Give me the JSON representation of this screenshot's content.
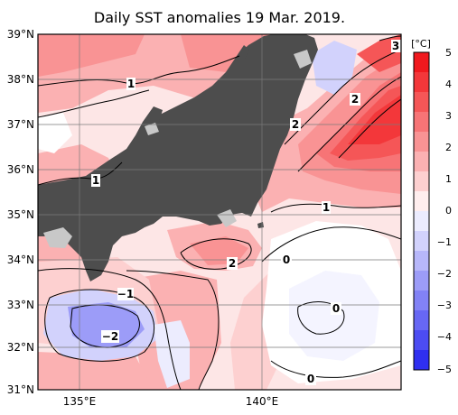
{
  "title": "Daily SST anomalies 19 Mar. 2019.",
  "lat_labels": [
    "39°N",
    "38°N",
    "37°N",
    "36°N",
    "35°N",
    "34°N",
    "33°N",
    "32°N",
    "31°N"
  ],
  "lon_labels": [
    "135°E",
    "140°E"
  ],
  "colorbar": {
    "unit": "[°C]",
    "ticks": [
      "5",
      "4",
      "3",
      "2",
      "1",
      "0",
      "−1",
      "−2",
      "−3",
      "−4",
      "−5"
    ],
    "colors": [
      "#f0191e",
      "#f3373a",
      "#f55657",
      "#f77476",
      "#f99394",
      "#fbb1b2",
      "#fdd0d0",
      "#ffeeee",
      "#ececfe",
      "#d2d2fc",
      "#b7b7fa",
      "#9c9cf8",
      "#8282f6",
      "#6767f4",
      "#4c4cf2",
      "#2f2ff0"
    ]
  },
  "contour_labels": {
    "c1": "1",
    "c2": "1",
    "c3": "1",
    "c4": "2",
    "c5": "2",
    "c6": "2",
    "c7": "3",
    "c8": "0",
    "c9": "0",
    "c10": "0",
    "c11": "−1",
    "c12": "−2"
  },
  "colors": {
    "land": "#4d4d4d",
    "grey_patch": "#c8c8c8",
    "grid": "#7a7a7a",
    "frame": "#000000"
  }
}
